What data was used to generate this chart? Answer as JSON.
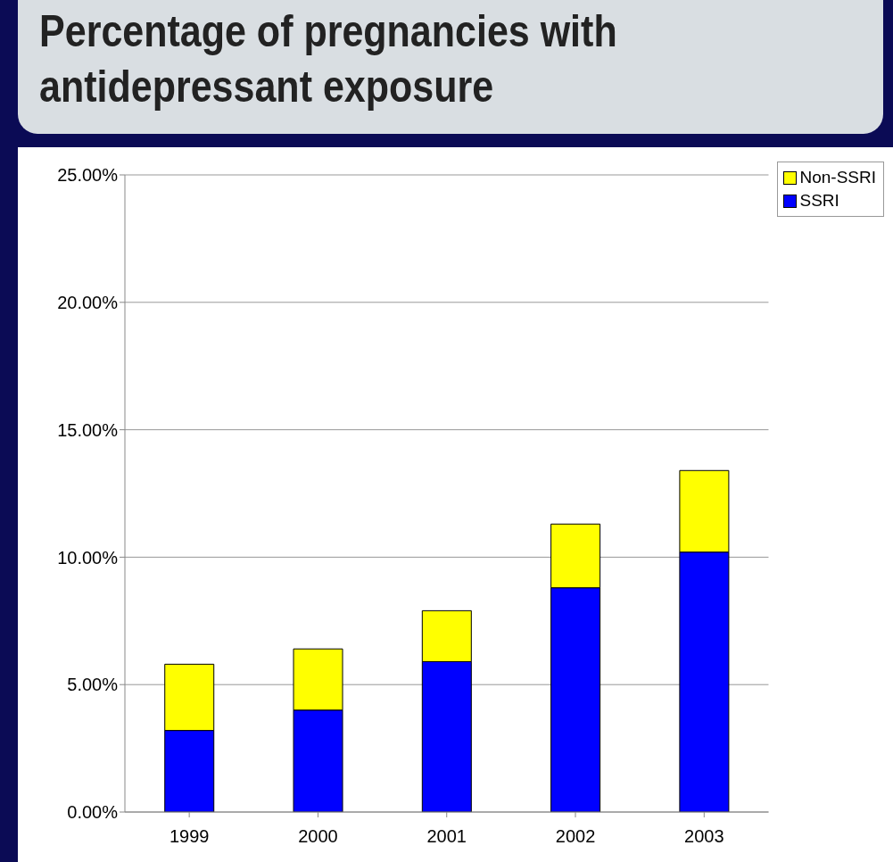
{
  "chart_data": {
    "type": "bar",
    "title": "Percentage of pregnancies with antidepressant exposure",
    "categories": [
      "1999",
      "2000",
      "2001",
      "2002",
      "2003"
    ],
    "stacked": true,
    "series": [
      {
        "name": "SSRI",
        "color": "#0000ff",
        "values": [
          3.2,
          4.0,
          5.9,
          8.8,
          10.2
        ]
      },
      {
        "name": "Non-SSRI",
        "color": "#ffff00",
        "values": [
          2.6,
          2.4,
          2.0,
          2.5,
          3.2
        ]
      }
    ],
    "ylim": [
      0,
      25
    ],
    "yticks": [
      {
        "value": 0,
        "label": "0.00%"
      },
      {
        "value": 5,
        "label": "5.00%"
      },
      {
        "value": 10,
        "label": "10.00%"
      },
      {
        "value": 15,
        "label": "15.00%"
      },
      {
        "value": 20,
        "label": "20.00%"
      },
      {
        "value": 25,
        "label": "25.00%"
      }
    ],
    "grid": "y",
    "legend": "top right"
  }
}
